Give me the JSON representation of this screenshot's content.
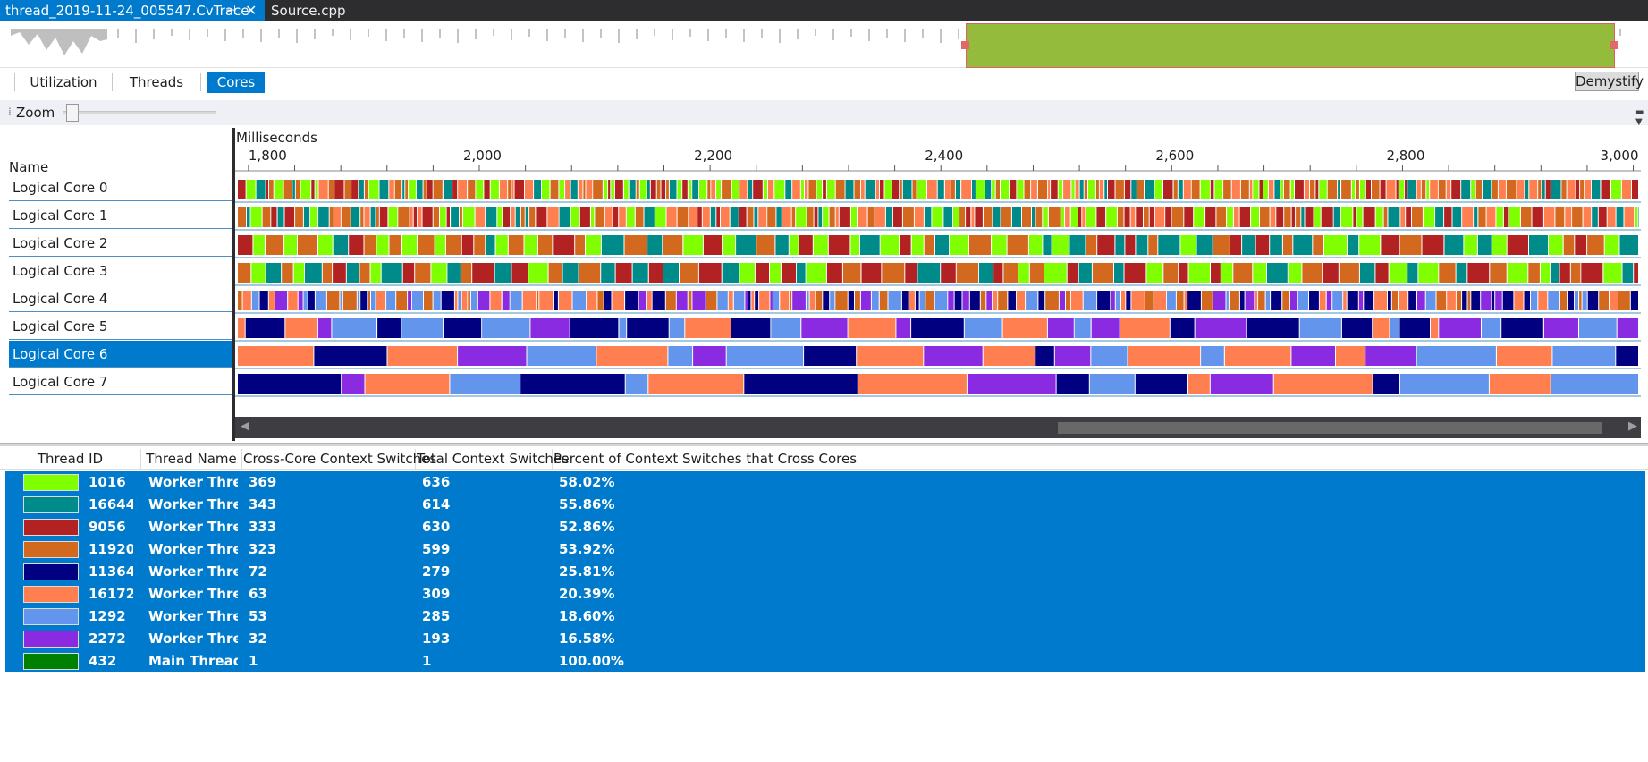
{
  "tabs": {
    "active_label": "thread_2019-11-24_005547.CvTrace",
    "pin_icon": "pin-icon",
    "close_icon": "close-icon",
    "inactive_label": "Source.cpp"
  },
  "view_buttons": [
    "Utilization",
    "Threads",
    "Cores"
  ],
  "selected_view": "Cores",
  "demystify_label": "Demystify",
  "zoom": {
    "label": "Zoom",
    "level": 0.0
  },
  "timeline": {
    "name_header": "Name",
    "axis_title": "Milliseconds",
    "axis_min": 1790,
    "axis_max": 3005,
    "major_ticks": [
      1800,
      2000,
      2200,
      2400,
      2600,
      2800,
      3000
    ],
    "major_tick_labels": [
      "1,800",
      "2,000",
      "2,200",
      "2,400",
      "2,600",
      "2,800",
      "3,000"
    ],
    "minor_tick_step": 40
  },
  "cores": [
    {
      "label": "Logical Core 0",
      "selected": false
    },
    {
      "label": "Logical Core 1",
      "selected": false
    },
    {
      "label": "Logical Core 2",
      "selected": false
    },
    {
      "label": "Logical Core 3",
      "selected": false
    },
    {
      "label": "Logical Core 4",
      "selected": false
    },
    {
      "label": "Logical Core 5",
      "selected": false
    },
    {
      "label": "Logical Core 6",
      "selected": true
    },
    {
      "label": "Logical Core 7",
      "selected": false
    }
  ],
  "table": {
    "headers": [
      "Thread ID",
      "Thread Name",
      "Cross-Core Context Switches",
      "Total Context Switches",
      "Percent of Context Switches that Cross Cores"
    ],
    "rows": [
      {
        "color": "#7fff00",
        "id": "1016",
        "name": "Worker Threa",
        "cross": "369",
        "total": "636",
        "percent": "58.02%"
      },
      {
        "color": "#008b8b",
        "id": "16644",
        "name": "Worker Threa",
        "cross": "343",
        "total": "614",
        "percent": "55.86%"
      },
      {
        "color": "#b22222",
        "id": "9056",
        "name": "Worker Threa",
        "cross": "333",
        "total": "630",
        "percent": "52.86%"
      },
      {
        "color": "#d2691e",
        "id": "11920",
        "name": "Worker Threa",
        "cross": "323",
        "total": "599",
        "percent": "53.92%"
      },
      {
        "color": "#000080",
        "id": "11364",
        "name": "Worker Threa",
        "cross": "72",
        "total": "279",
        "percent": "25.81%"
      },
      {
        "color": "#ff7f50",
        "id": "16172",
        "name": "Worker Threa",
        "cross": "63",
        "total": "309",
        "percent": "20.39%"
      },
      {
        "color": "#6495ed",
        "id": "1292",
        "name": "Worker Threa",
        "cross": "53",
        "total": "285",
        "percent": "18.60%"
      },
      {
        "color": "#8a2be2",
        "id": "2272",
        "name": "Worker Threa",
        "cross": "32",
        "total": "193",
        "percent": "16.58%"
      },
      {
        "color": "#008000",
        "id": "432",
        "name": "Main Thread",
        "cross": "1",
        "total": "1",
        "percent": "100.00%"
      }
    ]
  },
  "colors": {
    "accent": "#007acc",
    "overview_selection": "#95bb3c"
  }
}
